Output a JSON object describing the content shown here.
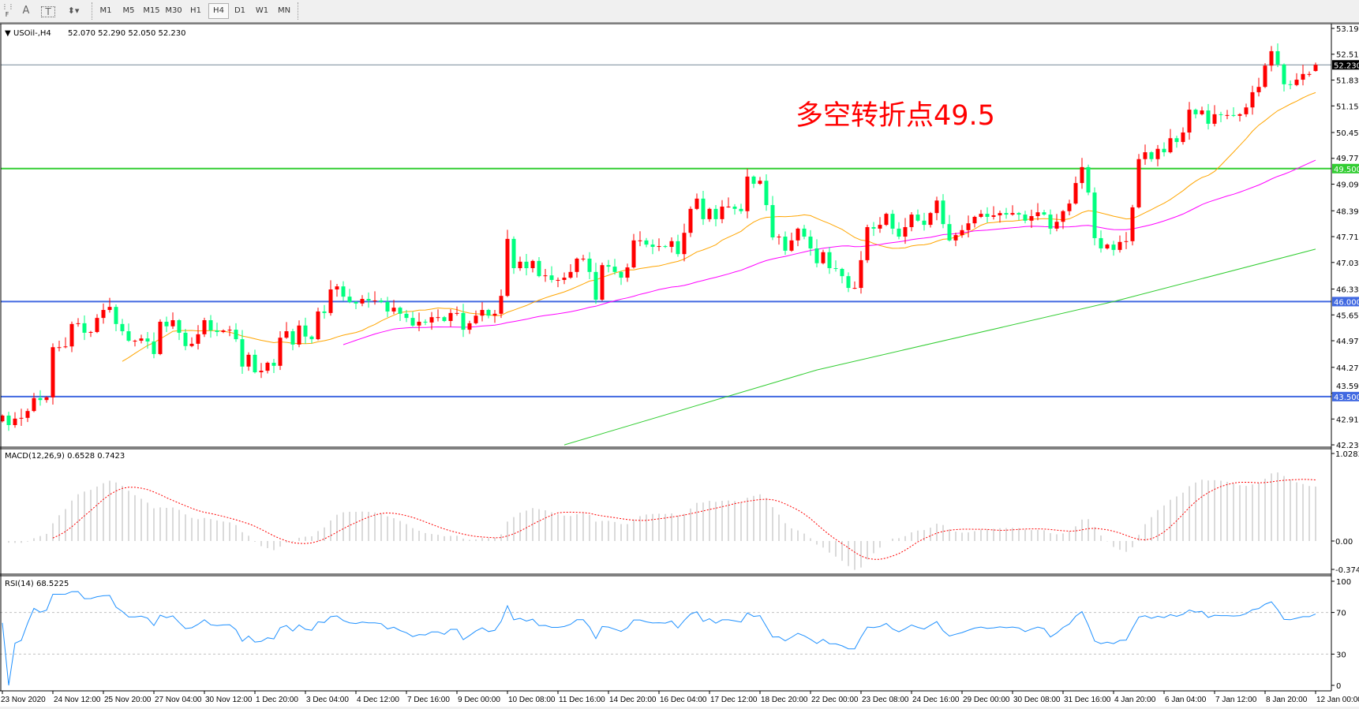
{
  "toolbar": {
    "icons": [
      "grid-f-icon",
      "text-a-icon",
      "text-box-icon",
      "arrows-icon"
    ],
    "text_a": "A",
    "text_t": "T",
    "timeframes": [
      "M1",
      "M5",
      "M15",
      "M30",
      "H1",
      "H4",
      "D1",
      "W1",
      "MN"
    ],
    "active_timeframe": "H4"
  },
  "chart": {
    "symbol": "USOil-,H4",
    "ohlc_label": "52.070 52.290 52.050 52.230",
    "annotation": "多空转折点49.5",
    "annotation_color": "#ff0000",
    "bull_color": "#ff0000",
    "bear_color": "#00ff7f"
  },
  "price_axis": {
    "ticks": [
      "53.190",
      "52.510",
      "51.830",
      "51.150",
      "50.450",
      "49.770",
      "49.090",
      "48.390",
      "47.710",
      "47.030",
      "46.330",
      "45.650",
      "44.970",
      "44.270",
      "43.590",
      "42.910",
      "42.230"
    ]
  },
  "levels": [
    {
      "value": 52.23,
      "label": "52.230",
      "color": "#778899",
      "text_color": "#ffffff",
      "label_bg": "#000000"
    },
    {
      "value": 49.5,
      "label": "49.500",
      "color": "#32cd32",
      "text_color": "#ffffff",
      "label_bg": "#32cd32"
    },
    {
      "value": 46.0,
      "label": "46.000",
      "color": "#4169e1",
      "text_color": "#ffffff",
      "label_bg": "#4169e1"
    },
    {
      "value": 43.5,
      "label": "43.500",
      "color": "#4169e1",
      "text_color": "#ffffff",
      "label_bg": "#4169e1"
    }
  ],
  "macd": {
    "label": "MACD(12,26,9) 0.6528 0.7423",
    "axis": {
      "top": "1.0283",
      "zero": "0.00",
      "bottom": "-0.3748"
    },
    "histogram_color": "#c0c0c0",
    "signal_color": "#ff0000"
  },
  "rsi": {
    "label": "RSI(14) 68.5225",
    "axis": [
      "100",
      "70",
      "30",
      "0"
    ],
    "line_color": "#1e90ff"
  },
  "time_axis": [
    "23 Nov 2020",
    "24 Nov 12:00",
    "25 Nov 20:00",
    "27 Nov 04:00",
    "30 Nov 12:00",
    "1 Dec 20:00",
    "3 Dec 04:00",
    "4 Dec 12:00",
    "7 Dec 16:00",
    "9 Dec 00:00",
    "10 Dec 08:00",
    "11 Dec 16:00",
    "14 Dec 20:00",
    "16 Dec 04:00",
    "17 Dec 12:00",
    "18 Dec 20:00",
    "22 Dec 00:00",
    "23 Dec 08:00",
    "24 Dec 16:00",
    "29 Dec 00:00",
    "30 Dec 08:00",
    "31 Dec 16:00",
    "4 Jan 20:00",
    "6 Jan 04:00",
    "7 Jan 12:00",
    "8 Jan 20:00",
    "12 Jan 00:00"
  ],
  "chart_data": {
    "type": "candlestick",
    "title": "USOil-,H4",
    "ylim": [
      42.23,
      53.19
    ],
    "first_open": 42.85,
    "close": [
      43.0,
      42.75,
      42.92,
      42.94,
      43.12,
      43.46,
      43.41,
      43.48,
      44.8,
      44.8,
      44.82,
      45.41,
      45.43,
      45.18,
      45.2,
      45.57,
      45.78,
      45.86,
      45.41,
      45.22,
      44.97,
      44.97,
      45.03,
      44.95,
      44.62,
      45.47,
      45.35,
      45.51,
      45.18,
      44.83,
      44.89,
      45.14,
      45.51,
      45.24,
      45.2,
      45.24,
      45.26,
      45.01,
      44.29,
      44.6,
      44.14,
      44.18,
      44.39,
      44.31,
      45.05,
      45.22,
      44.87,
      45.37,
      45.08,
      45.01,
      45.74,
      45.7,
      46.32,
      46.4,
      46.13,
      45.99,
      45.95,
      46.07,
      46.03,
      46.03,
      45.99,
      45.74,
      45.84,
      45.68,
      45.57,
      45.37,
      45.47,
      45.45,
      45.59,
      45.59,
      45.49,
      45.7,
      45.7,
      45.26,
      45.43,
      45.63,
      45.78,
      45.63,
      45.68,
      46.15,
      47.65,
      46.88,
      47.05,
      46.88,
      47.07,
      46.67,
      46.69,
      46.57,
      46.57,
      46.63,
      46.78,
      47.13,
      47.13,
      46.78,
      46.05,
      46.96,
      46.92,
      46.78,
      46.63,
      46.9,
      47.61,
      47.61,
      47.5,
      47.44,
      47.46,
      47.44,
      47.59,
      47.25,
      47.81,
      48.44,
      48.71,
      48.17,
      48.44,
      48.17,
      48.5,
      48.5,
      48.44,
      48.38,
      49.29,
      49.1,
      49.18,
      48.54,
      47.69,
      47.71,
      47.34,
      47.61,
      47.92,
      47.71,
      47.4,
      47.01,
      47.3,
      46.88,
      46.86,
      46.67,
      46.36,
      46.36,
      47.09,
      47.96,
      47.92,
      48.02,
      48.31,
      47.92,
      47.71,
      47.96,
      48.29,
      48.13,
      48.02,
      48.33,
      48.66,
      48.04,
      47.61,
      47.75,
      47.88,
      48.06,
      48.23,
      48.31,
      48.23,
      48.27,
      48.33,
      48.29,
      48.33,
      48.29,
      48.13,
      48.25,
      48.35,
      48.29,
      47.92,
      48.1,
      48.38,
      48.58,
      49.12,
      49.54,
      48.87,
      47.67,
      47.4,
      47.5,
      47.36,
      47.57,
      47.59,
      48.48,
      49.75,
      49.93,
      49.75,
      50.02,
      49.93,
      50.3,
      50.2,
      50.45,
      51.05,
      50.93,
      51.03,
      50.68,
      50.93,
      50.91,
      50.91,
      50.89,
      50.93,
      51.11,
      51.51,
      51.65,
      52.21,
      52.59,
      52.24,
      51.72,
      51.7,
      51.84,
      51.99,
      51.99,
      52.23
    ],
    "last_bar": {
      "open": 52.07,
      "high": 52.29,
      "low": 52.05,
      "close": 52.23
    },
    "moving_averages": [
      {
        "color": "#ffa500"
      },
      {
        "color": "#ff00ff"
      },
      {
        "color": "#32cd32",
        "points": [
          [
            89,
            42.23
          ],
          [
            129,
            44.2
          ],
          [
            176,
            46.0
          ],
          [
            208,
            47.38
          ]
        ]
      }
    ]
  }
}
